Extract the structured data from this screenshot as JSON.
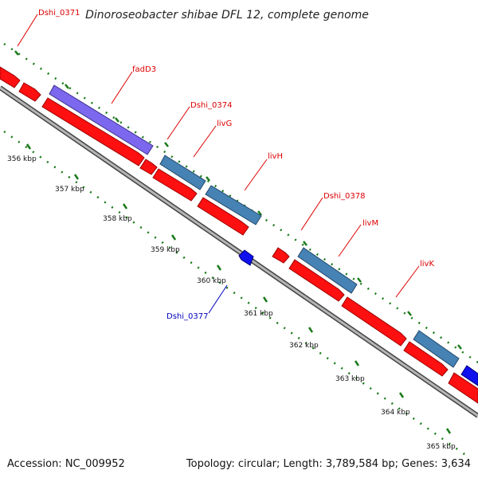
{
  "title": "Dinoroseobacter shibae DFL 12, complete genome",
  "footer": {
    "accession": "Accession: NC_009952",
    "topology": "Topology: circular; Length: 3,789,584 bp; Genes: 3,634"
  },
  "colors": {
    "forward_gene": "#ff1010",
    "reverse_gene": "#1010ee",
    "blue_highlight": "#4682b4",
    "purple_highlight": "#7b68ee",
    "tick": "#1a7a1a",
    "backbone": "#9a9a9a",
    "label_red": "#dd0000",
    "label_blue": "#0000bb"
  },
  "kbp_labels": [
    "356 kbp",
    "357 kbp",
    "358 kbp",
    "359 kbp",
    "360 kbp",
    "361 kbp",
    "362 kbp",
    "363 kbp",
    "364 kbp",
    "365 kbp"
  ],
  "gene_labels": [
    "Dshi_0371",
    "fadD3",
    "Dshi_0374",
    "livG",
    "livH",
    "Dshi_0378",
    "livM",
    "livK",
    "Dshi_0377"
  ]
}
